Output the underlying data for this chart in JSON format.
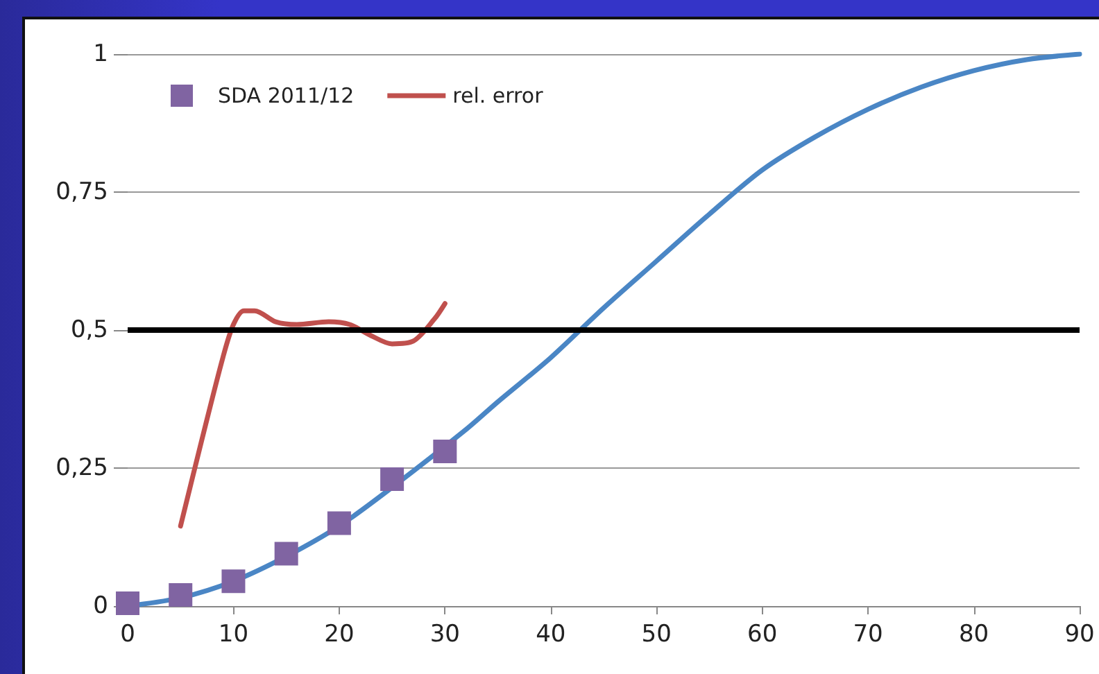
{
  "chart_data": {
    "type": "line",
    "xlim": [
      0,
      90
    ],
    "xticks": [
      0,
      10,
      20,
      30,
      40,
      50,
      60,
      70,
      80,
      90
    ],
    "ylim": [
      0,
      1
    ],
    "yticks": [
      0,
      {
        "value": 0.25,
        "label": "0,25"
      },
      {
        "value": 0.5,
        "label": "0,5"
      },
      {
        "value": 0.75,
        "label": "0,75"
      },
      1
    ],
    "grid": "y",
    "legend": "top left",
    "series": [
      {
        "color": "#4a86c5",
        "marker": "none",
        "x": [
          0,
          5,
          10,
          15,
          20,
          25,
          32,
          35,
          40,
          45,
          50,
          55,
          60,
          65,
          70,
          75,
          80,
          85,
          90
        ],
        "values": [
          0,
          0.015,
          0.045,
          0.09,
          0.145,
          0.215,
          0.32,
          0.37,
          0.45,
          0.54,
          0.625,
          0.71,
          0.79,
          0.85,
          0.9,
          0.94,
          0.97,
          0.99,
          1
        ]
      },
      {
        "type": "scatter",
        "name": "SDA 2011/12",
        "color": "#8064a2",
        "marker": "square",
        "x": [
          0,
          5,
          10,
          15,
          20,
          25,
          30
        ],
        "values": [
          0.005,
          0.02,
          0.045,
          0.095,
          0.15,
          0.23,
          0.28
        ]
      },
      {
        "type": "line",
        "name": "rel. error",
        "color": "#c0504d",
        "marker": "none",
        "x": [
          5,
          7,
          9,
          10,
          11,
          12,
          14,
          16,
          19,
          21,
          23,
          25,
          27,
          29,
          30
        ],
        "values": [
          0.145,
          0.3,
          0.45,
          0.51,
          0.535,
          0.535,
          0.515,
          0.51,
          0.515,
          0.51,
          0.49,
          0.475,
          0.48,
          0.52,
          0.548
        ]
      }
    ],
    "ref_lines": [
      {
        "axis": "y",
        "value": 0.5,
        "color": "#000000"
      }
    ]
  }
}
